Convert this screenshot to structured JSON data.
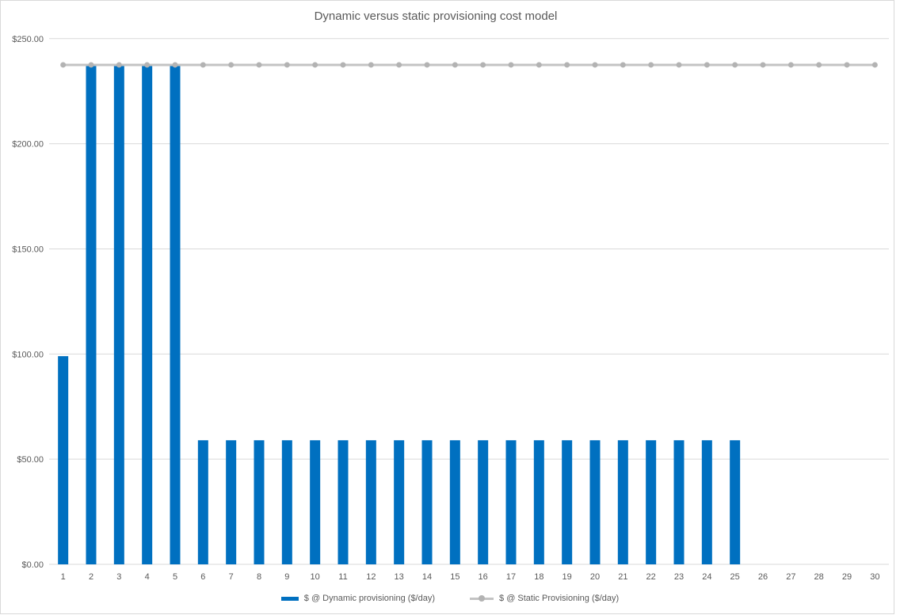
{
  "title": "Dynamic versus static provisioning cost model",
  "colors": {
    "bar": "#0070C0",
    "line": "#C3C3C3",
    "marker": "#B3B3B3",
    "grid": "#D9D9D9",
    "axis": "#D9D9D9",
    "border": "#D9D9D9",
    "text": "#595959",
    "background": "#FFFFFF"
  },
  "legend": {
    "items": [
      {
        "label": "$ @ Dynamic provisioning ($/day)",
        "type": "bar"
      },
      {
        "label": "$ @ Static Provisioning ($/day)",
        "type": "line-marker"
      }
    ]
  },
  "chart_data": {
    "type": "combo",
    "title": "Dynamic versus static provisioning cost model",
    "xlabel": "",
    "ylabel": "",
    "categories": [
      1,
      2,
      3,
      4,
      5,
      6,
      7,
      8,
      9,
      10,
      11,
      12,
      13,
      14,
      15,
      16,
      17,
      18,
      19,
      20,
      21,
      22,
      23,
      24,
      25,
      26,
      27,
      28,
      29,
      30
    ],
    "series": [
      {
        "name": "$ @ Dynamic provisioning ($/day)",
        "kind": "bar",
        "values": [
          99,
          237.5,
          237.5,
          237.5,
          237.5,
          59,
          59,
          59,
          59,
          59,
          59,
          59,
          59,
          59,
          59,
          59,
          59,
          59,
          59,
          59,
          59,
          59,
          59,
          59,
          59,
          0,
          0,
          0,
          0,
          0
        ]
      },
      {
        "name": "$ @ Static Provisioning ($/day)",
        "kind": "line",
        "values": [
          237.5,
          237.5,
          237.5,
          237.5,
          237.5,
          237.5,
          237.5,
          237.5,
          237.5,
          237.5,
          237.5,
          237.5,
          237.5,
          237.5,
          237.5,
          237.5,
          237.5,
          237.5,
          237.5,
          237.5,
          237.5,
          237.5,
          237.5,
          237.5,
          237.5,
          237.5,
          237.5,
          237.5,
          237.5,
          237.5
        ]
      }
    ],
    "ylim": [
      0,
      250
    ],
    "yticks": [
      0,
      50,
      100,
      150,
      200,
      250
    ],
    "ytick_labels": [
      "$0.00",
      "$50.00",
      "$100.00",
      "$150.00",
      "$200.00",
      "$250.00"
    ],
    "grid": true,
    "legend_position": "bottom"
  }
}
